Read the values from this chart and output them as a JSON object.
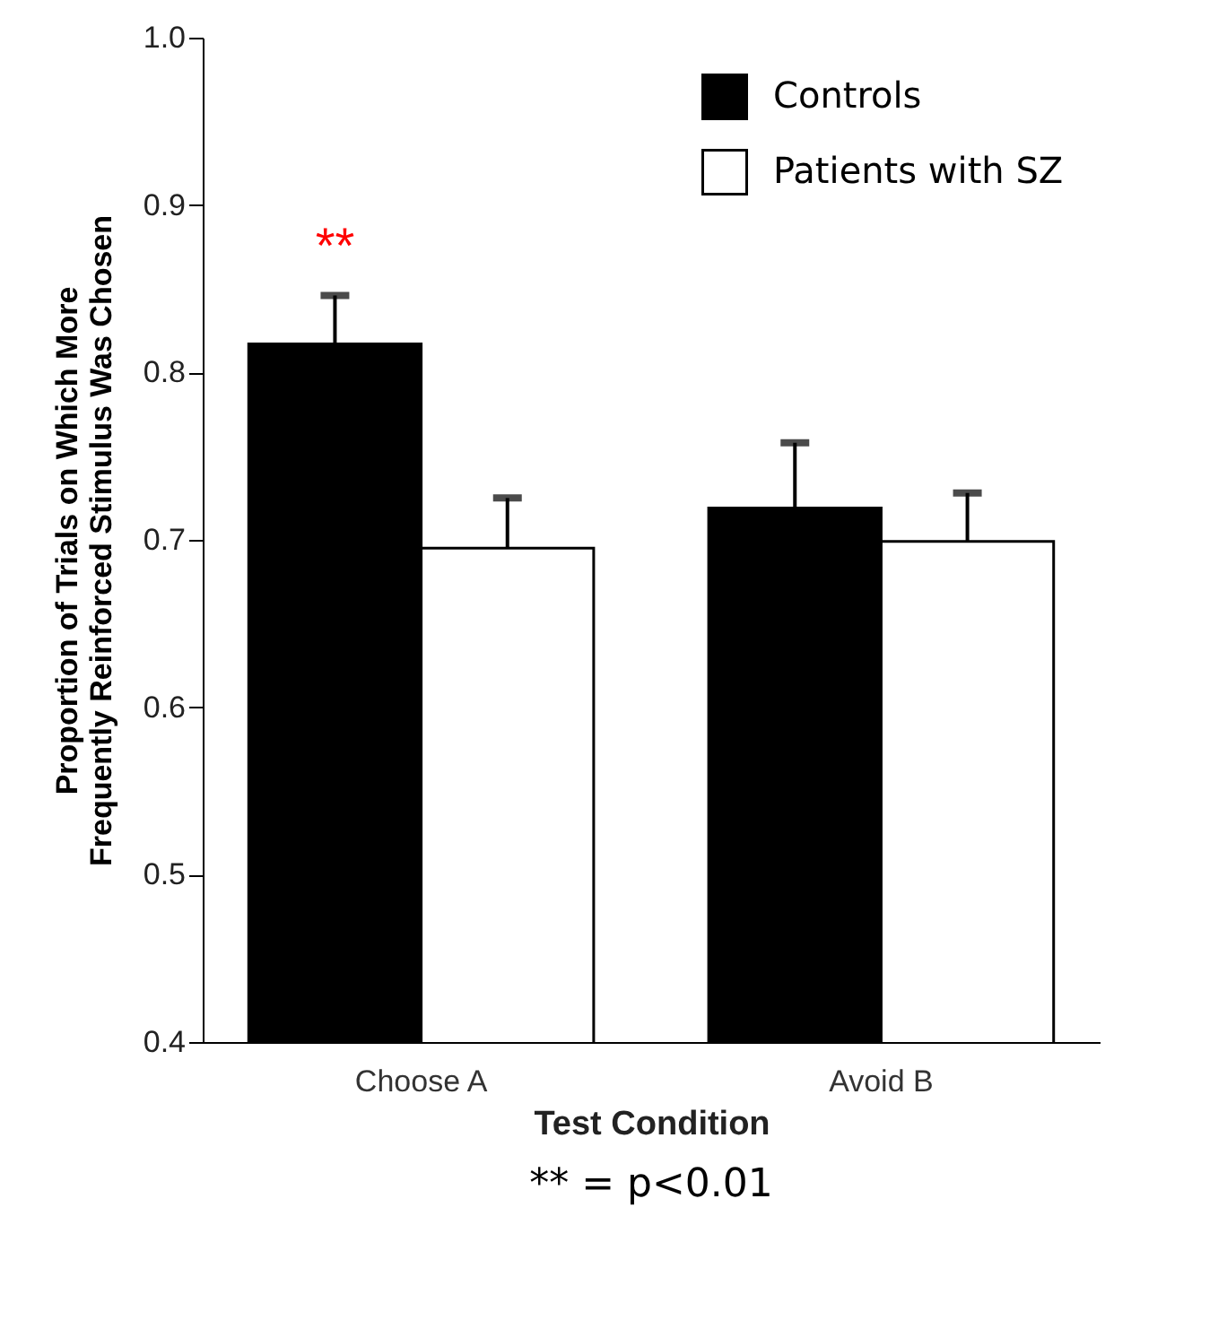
{
  "chart_data": {
    "type": "bar",
    "xlabel": "Test Condition",
    "ylabel": "Proportion of Trials on Which More\nFrequently Reinforced Stimulus Was Chosen",
    "categories": [
      "Choose A",
      "Avoid B"
    ],
    "series": [
      {
        "name": "Controls",
        "color": "#000000",
        "values": [
          0.817,
          0.719
        ],
        "errors": [
          [
            0.817,
            0.846
          ],
          [
            0.719,
            0.758
          ]
        ]
      },
      {
        "name": "Patients with SZ",
        "color": "#ffffff",
        "values": [
          0.695,
          0.699
        ],
        "errors": [
          [
            0.695,
            0.725
          ],
          [
            0.699,
            0.728
          ]
        ]
      }
    ],
    "ylim": [
      0.4,
      1.0
    ],
    "yticks": [
      0.4,
      0.5,
      0.6,
      0.7,
      0.8,
      0.9,
      {
        "value": 1,
        "label": "1.0"
      }
    ],
    "legend": "top right",
    "grid": false,
    "annotations": [
      "**",
      "** = p<0.01"
    ]
  }
}
